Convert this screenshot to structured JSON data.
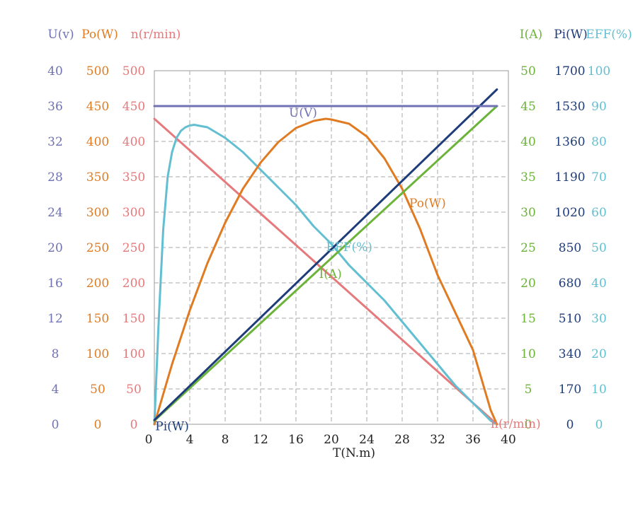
{
  "chart_data": {
    "type": "line",
    "xlabel": "T(N.m)",
    "x_ticks": [
      0,
      4,
      8,
      12,
      16,
      20,
      24,
      28,
      32,
      36,
      40
    ],
    "xlim": [
      0,
      40
    ],
    "grid": true,
    "axes": [
      {
        "id": "U",
        "side": "left",
        "title": "U(v)",
        "color": "#6f72b3",
        "min": 0,
        "max": 40,
        "ticks": [
          "0",
          "4",
          "8",
          "12",
          "16",
          "20",
          "24",
          "28",
          "32",
          "36",
          "40"
        ]
      },
      {
        "id": "Po",
        "side": "left",
        "title": "Po(W)",
        "color": "#e07b22",
        "min": 0,
        "max": 500,
        "ticks": [
          "0",
          "50",
          "100",
          "150",
          "200",
          "250",
          "300",
          "350",
          "400",
          "450",
          "500"
        ]
      },
      {
        "id": "n",
        "side": "left",
        "title": "n(r/min)",
        "color": "#e5797b",
        "min": 0,
        "max": 500,
        "ticks": [
          "0",
          "50",
          "100",
          "150",
          "200",
          "250",
          "300",
          "350",
          "400",
          "450",
          "500"
        ]
      },
      {
        "id": "I",
        "side": "right",
        "title": "I(A)",
        "color": "#6cb33a",
        "min": 0,
        "max": 50,
        "ticks": [
          "0",
          "5",
          "10",
          "15",
          "20",
          "25",
          "30",
          "35",
          "40",
          "45",
          "50"
        ]
      },
      {
        "id": "Pi",
        "side": "right",
        "title": "Pi(W)",
        "color": "#1f3c7a",
        "min": 0,
        "max": 1700,
        "ticks": [
          "0",
          "170",
          "340",
          "510",
          "680",
          "850",
          "1020",
          "1190",
          "1360",
          "1530",
          "1700"
        ]
      },
      {
        "id": "EFF",
        "side": "right",
        "title": "EFF(%)",
        "color": "#62bfd1",
        "min": 0,
        "max": 100,
        "ticks": [
          "0",
          "10",
          "20",
          "30",
          "40",
          "50",
          "60",
          "70",
          "80",
          "90",
          "100"
        ]
      }
    ],
    "series": [
      {
        "name": "U(V)",
        "axis": "U",
        "color": "#6f72b3",
        "x": [
          0,
          38.7
        ],
        "y": [
          36,
          36
        ]
      },
      {
        "name": "n(r/min)",
        "axis": "n",
        "color": "#e5797b",
        "x": [
          0,
          38.7
        ],
        "y": [
          432,
          0
        ]
      },
      {
        "name": "I(A)",
        "axis": "I",
        "color": "#6cb33a",
        "x": [
          0,
          38.7
        ],
        "y": [
          0.5,
          45
        ]
      },
      {
        "name": "Pi(W)",
        "axis": "Pi",
        "color": "#1f3c7a",
        "x": [
          0,
          38.7
        ],
        "y": [
          20,
          1610
        ]
      },
      {
        "name": "Po(W)",
        "axis": "Po",
        "color": "#e07b22",
        "x": [
          0,
          2,
          4,
          6,
          8,
          10,
          12,
          14,
          16,
          18,
          19.35,
          20,
          22,
          24,
          26,
          28,
          30,
          32,
          34,
          36,
          38,
          38.7
        ],
        "y": [
          0,
          85,
          161,
          228,
          285,
          333,
          370,
          399,
          419,
          429,
          432,
          431,
          425,
          407,
          376,
          333,
          277,
          211,
          158,
          105,
          20,
          0
        ]
      },
      {
        "name": "EFF(%)",
        "axis": "EFF",
        "color": "#62bfd1",
        "x": [
          0,
          0.5,
          1,
          1.5,
          2,
          2.5,
          3,
          3.5,
          4,
          4.5,
          6,
          8,
          10,
          12,
          14,
          16,
          18,
          20,
          22,
          24,
          26,
          28,
          30,
          32,
          34,
          36,
          38,
          38.7
        ],
        "y": [
          0,
          30,
          55,
          70,
          77,
          81,
          83,
          84,
          84.5,
          84.7,
          84,
          81,
          77,
          72,
          67,
          62,
          56,
          51,
          45,
          40,
          35,
          29,
          23,
          17,
          11,
          6,
          1,
          0
        ]
      }
    ],
    "series_labels": [
      {
        "series": "U(V)",
        "text": "U(V)",
        "x": 15.2,
        "axis": "U",
        "y": 35.2
      },
      {
        "series": "Po(W)",
        "text": "Po(W)",
        "x": 28.8,
        "axis": "Po",
        "y": 312
      },
      {
        "series": "EFF(%)",
        "text": "EFF(%)",
        "x": 19.4,
        "axis": "EFF",
        "y": 50
      },
      {
        "series": "I(A)",
        "text": "I(A)",
        "x": 18.6,
        "axis": "I",
        "y": 21.2
      },
      {
        "series": "n(r/min)",
        "text": "n(r/min)",
        "x": 38.0,
        "axis": "n",
        "y": 0
      },
      {
        "series": "Pi(W)",
        "text": "Pi(W)",
        "x": 0.1,
        "axis": "Pi",
        "y": -12
      }
    ]
  }
}
